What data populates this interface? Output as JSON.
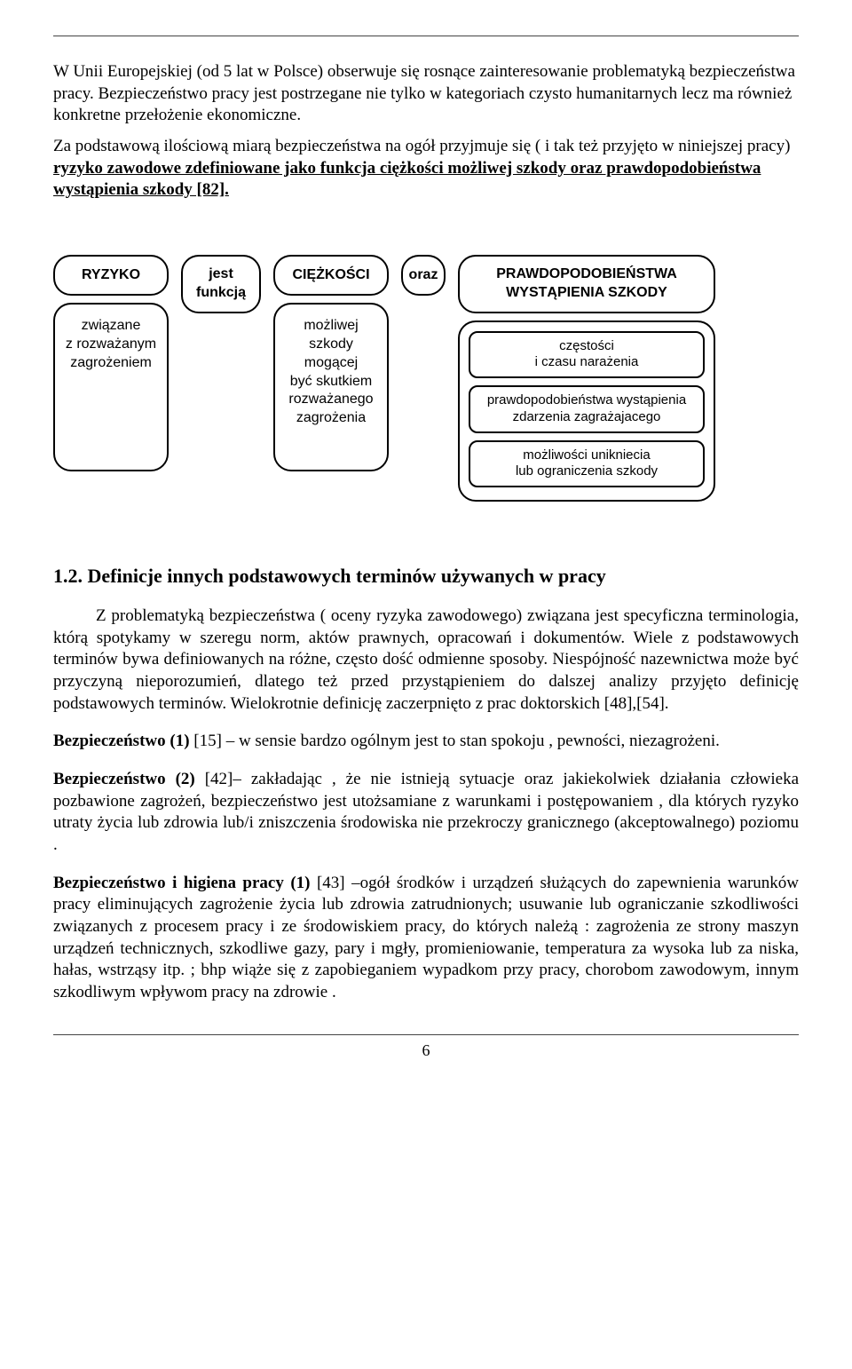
{
  "intro": {
    "p1": "W Unii Europejskiej (od 5 lat  w Polsce) obserwuje się rosnące zainteresowanie problematyką bezpieczeństwa pracy. Bezpieczeństwo pracy jest postrzegane nie tylko w kategoriach czysto humanitarnych lecz ma również konkretne przełożenie ekonomiczne.",
    "p2_a": "Za podstawową ilościową miarą bezpieczeństwa na ogół przyjmuje się ( i tak też przyjęto w niniejszej pracy) ",
    "p2_b": "ryzyko zawodowe zdefiniowane jako funkcja ciężkości możliwej szkody oraz prawdopodobieństwa wystąpienia szkody [82]."
  },
  "diagram": {
    "col1": {
      "header": "RYZYKO",
      "body": "związane\nz rozważanym\nzagrożeniem"
    },
    "col2": {
      "header": "jest\nfunkcją"
    },
    "col3": {
      "header": "CIĘŻKOŚCI",
      "body": "możliwej\nszkody\nmogącej\nbyć skutkiem\nrozważanego\nzagrożenia"
    },
    "col4": {
      "header": "oraz"
    },
    "col5": {
      "header": "PRAWDOPODOBIEŃSTWA\nWYSTĄPIENIA SZKODY",
      "items": [
        "częstości\ni czasu narażenia",
        "prawdopodobieństwa wystąpienia\nzdarzenia zagrażajacego",
        "możliwości unikniecia\nlub ograniczenia szkody"
      ]
    }
  },
  "section": {
    "heading": "1.2. Definicje innych podstawowych terminów używanych w pracy",
    "para": "Z problematyką bezpieczeństwa ( oceny ryzyka zawodowego) związana jest specyficzna terminologia, którą spotykamy w szeregu norm, aktów prawnych, opracowań i dokumentów. Wiele z podstawowych terminów bywa definiowanych na różne, często dość odmienne sposoby. Niespójność nazewnictwa może być przyczyną nieporozumień, dlatego też przed przystąpieniem do dalszej analizy przyjęto definicję podstawowych terminów. Wielokrotnie definicję zaczerpnięto z prac doktorskich [48],[54].",
    "defs": [
      {
        "term": "Bezpieczeństwo (1)",
        "ref": "[15]",
        "body": " – w sensie bardzo ogólnym jest to stan spokoju , pewności, niezagrożeni."
      },
      {
        "term": "Bezpieczeństwo (2)",
        "ref": "[42]",
        "body": "– zakładając , że nie istnieją sytuacje oraz jakiekolwiek działania człowieka pozbawione zagrożeń, bezpieczeństwo jest utożsamiane z warunkami i postępowaniem , dla których ryzyko utraty życia lub zdrowia lub/i zniszczenia środowiska nie przekroczy granicznego (akceptowalnego) poziomu ."
      },
      {
        "term": "Bezpieczeństwo i higiena pracy (1)",
        "ref": "[43]",
        "body": " –ogół środków i urządzeń służących do zapewnienia warunków pracy  eliminujących zagrożenie życia lub zdrowia zatrudnionych; usuwanie lub ograniczanie szkodliwości związanych z procesem pracy i ze środowiskiem pracy, do których należą : zagrożenia ze strony maszyn urządzeń technicznych, szkodliwe gazy, pary i mgły, promieniowanie, temperatura za wysoka lub za niska, hałas, wstrząsy itp. ; bhp wiąże się z zapobieganiem wypadkom przy pracy, chorobom zawodowym, innym szkodliwym wpływom pracy na zdrowie ."
      }
    ]
  },
  "page_number": "6"
}
